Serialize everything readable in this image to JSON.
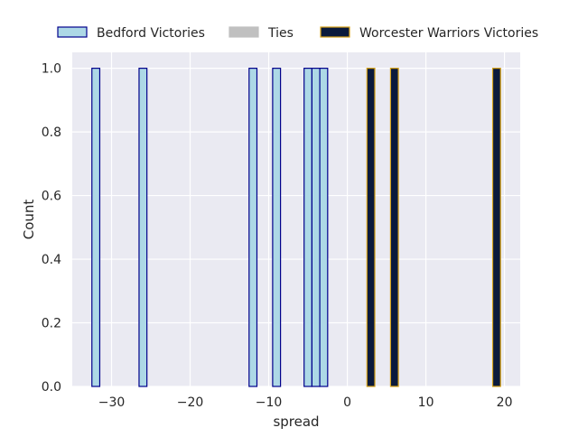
{
  "chart_data": {
    "type": "bar",
    "subtype": "histogram",
    "title": "",
    "xlabel": "spread",
    "ylabel": "Count",
    "xlim": [
      -35,
      22
    ],
    "ylim": [
      0,
      1.05
    ],
    "x_ticks": [
      -30,
      -20,
      -10,
      0,
      10,
      20
    ],
    "x_tick_labels": [
      "−30",
      "−20",
      "−10",
      "0",
      "10",
      "20"
    ],
    "y_ticks": [
      0,
      0.2,
      0.4,
      0.6,
      0.8,
      1.0
    ],
    "y_tick_labels": [
      "0.0",
      "0.2",
      "0.4",
      "0.6",
      "0.8",
      "1.0"
    ],
    "grid": true,
    "background": "#eaeaf2",
    "legend_placement": "top, above plot",
    "bin_width": 1,
    "series": [
      {
        "name": "Bedford Victories",
        "fill": "#add8e6",
        "edge": "#00008b",
        "values": [
          {
            "x": -32,
            "count": 1
          },
          {
            "x": -26,
            "count": 1
          },
          {
            "x": -12,
            "count": 1
          },
          {
            "x": -9,
            "count": 1
          },
          {
            "x": -5,
            "count": 1
          },
          {
            "x": -4,
            "count": 1
          },
          {
            "x": -3,
            "count": 1
          }
        ]
      },
      {
        "name": "Ties",
        "fill": "#c0c0c0",
        "edge": "#c0c0c0",
        "values": []
      },
      {
        "name": "Worcester Warriors Victories",
        "fill": "#0a1a3c",
        "edge": "#d4a017",
        "values": [
          {
            "x": 3,
            "count": 1
          },
          {
            "x": 6,
            "count": 1
          },
          {
            "x": 19,
            "count": 1
          }
        ]
      }
    ]
  }
}
